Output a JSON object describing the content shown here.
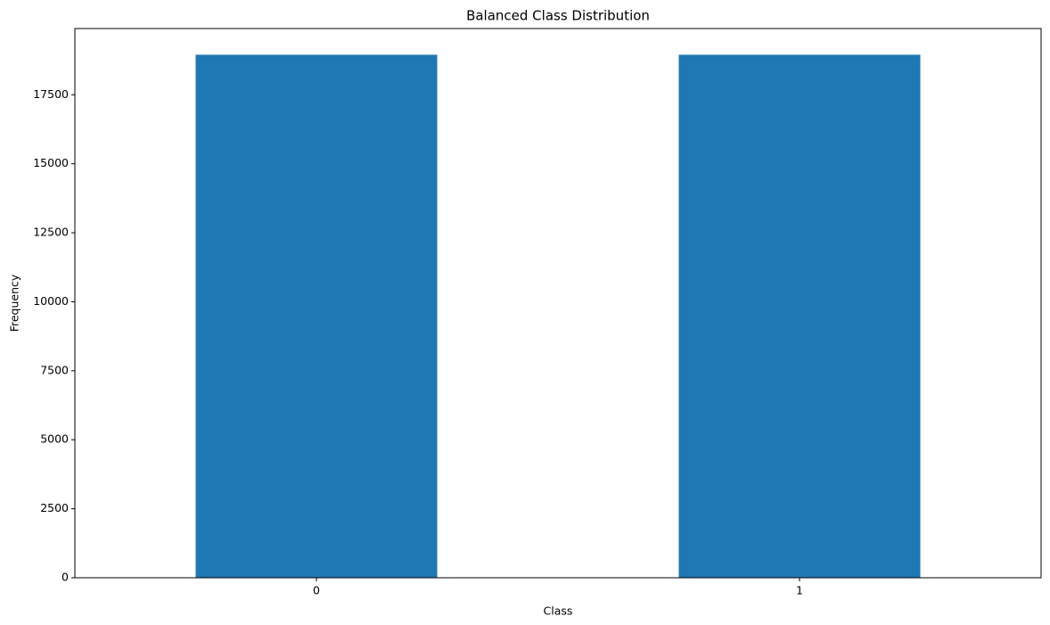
{
  "chart_data": {
    "type": "bar",
    "title": "Balanced Class Distribution",
    "x_label": "Class",
    "y_label": "Frequency",
    "categories": [
      "0",
      "1"
    ],
    "values": [
      18950,
      18950
    ],
    "color": "#1f77b4",
    "ylim": [
      0,
      19900
    ],
    "yticks": [
      0,
      2500,
      5000,
      7500,
      10000,
      12500,
      15000,
      17500
    ]
  }
}
